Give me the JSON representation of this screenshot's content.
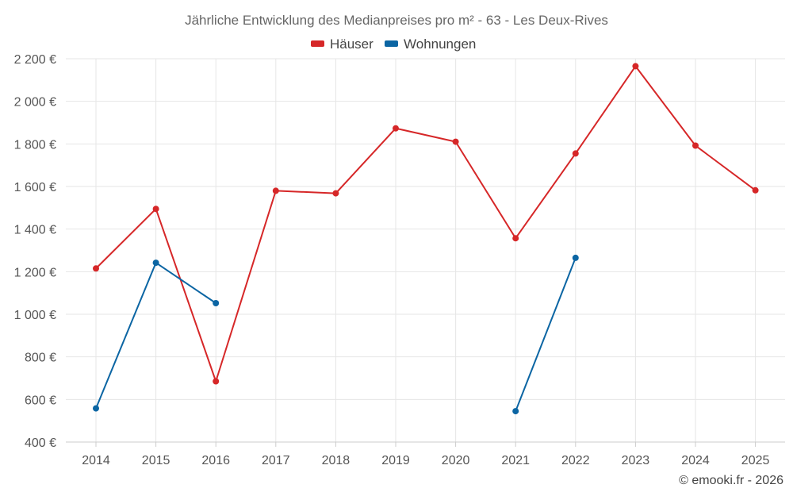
{
  "chart_data": {
    "type": "line",
    "title": "Jährliche Entwicklung des Medianpreises pro m² - 63 - Les Deux-Rives",
    "categories": [
      "2014",
      "2015",
      "2016",
      "2017",
      "2018",
      "2019",
      "2020",
      "2021",
      "2022",
      "2023",
      "2024",
      "2025"
    ],
    "series": [
      {
        "name": "Häuser",
        "color": "#d62728",
        "values": [
          1215,
          1495,
          685,
          1580,
          1568,
          1873,
          1810,
          1357,
          1755,
          2165,
          1792,
          1582
        ]
      },
      {
        "name": "Wohnungen",
        "color": "#0b65a3",
        "values": [
          558,
          1242,
          1052,
          null,
          null,
          null,
          null,
          545,
          1265,
          null,
          null,
          null
        ]
      }
    ],
    "ylim": [
      400,
      2200
    ],
    "yticks": [
      400,
      600,
      800,
      1000,
      1200,
      1400,
      1600,
      1800,
      2000,
      2200
    ],
    "ytick_labels": [
      "400 €",
      "600 €",
      "800 €",
      "1 000 €",
      "1 200 €",
      "1 400 €",
      "1 600 €",
      "1 800 €",
      "2 000 €",
      "2 200 €"
    ],
    "grid": true,
    "legend_position": "top-center",
    "xlabel": "",
    "ylabel": ""
  },
  "credit": "© emooki.fr - 2026"
}
